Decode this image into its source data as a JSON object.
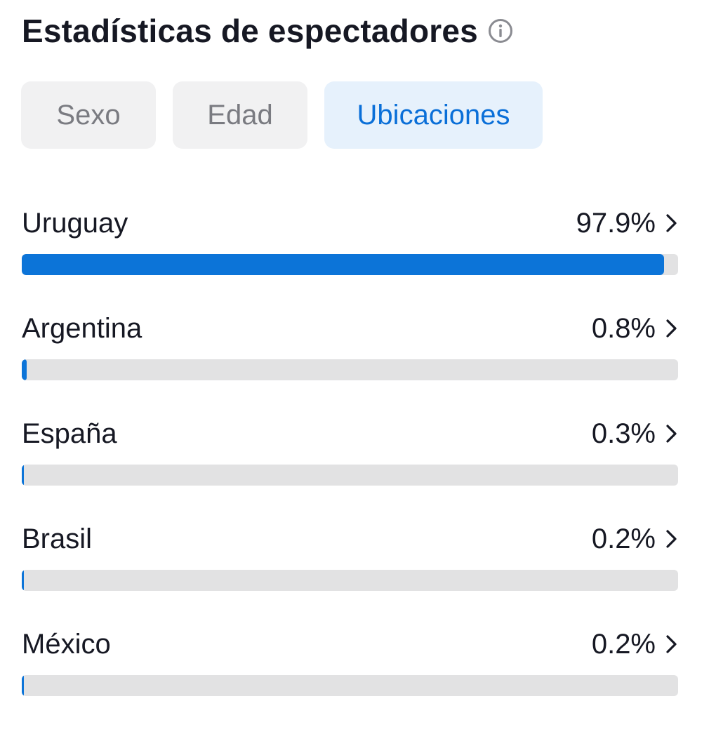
{
  "header": {
    "title": "Estadísticas de espectadores",
    "info_icon": "info-icon"
  },
  "tabs": [
    {
      "label": "Sexo",
      "active": false
    },
    {
      "label": "Edad",
      "active": false
    },
    {
      "label": "Ubicaciones",
      "active": true
    }
  ],
  "locations": [
    {
      "country": "Uruguay",
      "percent_label": "97.9%",
      "fraction": 0.979
    },
    {
      "country": "Argentina",
      "percent_label": "0.8%",
      "fraction": 0.008
    },
    {
      "country": "España",
      "percent_label": "0.3%",
      "fraction": 0.003
    },
    {
      "country": "Brasil",
      "percent_label": "0.2%",
      "fraction": 0.002
    },
    {
      "country": "México",
      "percent_label": "0.2%",
      "fraction": 0.002
    }
  ],
  "colors": {
    "accent": "#0c74d8",
    "active_tab_bg": "#e6f1fc",
    "inactive_tab_bg": "#f1f1f2",
    "track": "#e2e2e3"
  },
  "icons": {
    "row_arrow": "chevron-right-icon"
  }
}
